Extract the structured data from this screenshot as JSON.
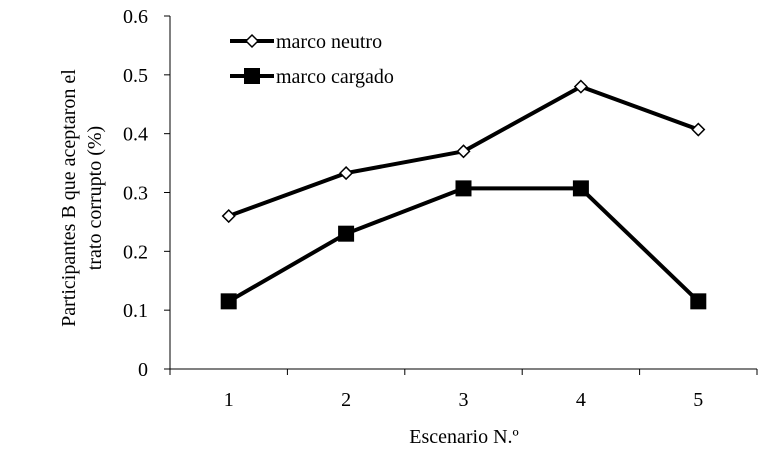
{
  "chart_data": {
    "type": "line",
    "title": "",
    "xlabel": "Escenario N.º",
    "ylabel_lines": [
      "Participantes B que aceptaron el",
      "trato corrupto (%)"
    ],
    "categories": [
      "1",
      "2",
      "3",
      "4",
      "5"
    ],
    "ylim": [
      0,
      0.6
    ],
    "yticks": [
      "0",
      "0.1",
      "0.2",
      "0.3",
      "0.4",
      "0.5",
      "0.6"
    ],
    "grid": false,
    "legend_position": "top-left",
    "series": [
      {
        "name": "marco neutro",
        "marker": "diamond-open",
        "color": "#000000",
        "values": [
          0.26,
          0.333,
          0.37,
          0.48,
          0.407
        ]
      },
      {
        "name": "marco cargado",
        "marker": "square-filled",
        "color": "#000000",
        "values": [
          0.115,
          0.23,
          0.307,
          0.307,
          0.115
        ]
      }
    ]
  }
}
